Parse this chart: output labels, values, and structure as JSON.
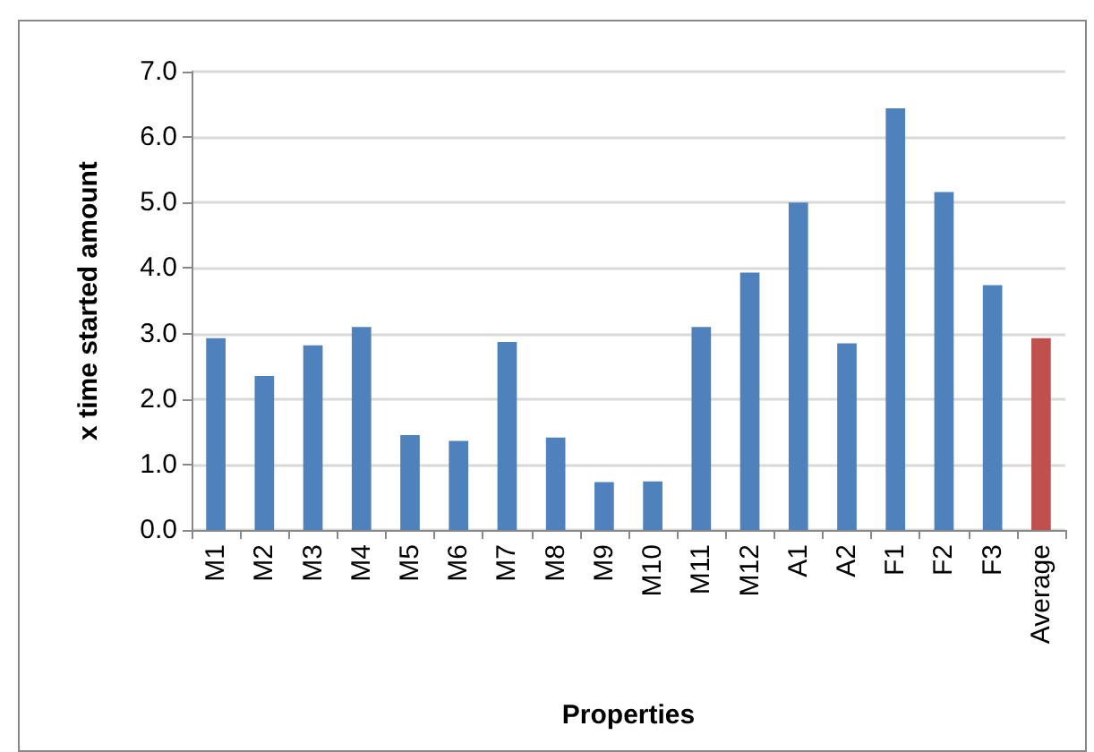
{
  "chart_data": {
    "type": "bar",
    "xlabel": "Properties",
    "ylabel": "x time started amount",
    "categories": [
      "M1",
      "M2",
      "M3",
      "M4",
      "M5",
      "M6",
      "M7",
      "M8",
      "M9",
      "M10",
      "M11",
      "M12",
      "A1",
      "A2",
      "F1",
      "F2",
      "F3",
      "Average"
    ],
    "values": [
      2.93,
      2.35,
      2.82,
      3.1,
      1.45,
      1.36,
      2.87,
      1.41,
      0.73,
      0.74,
      3.1,
      3.93,
      5.0,
      2.85,
      6.44,
      5.16,
      3.74,
      2.93
    ],
    "colors": [
      "#4f81bd",
      "#4f81bd",
      "#4f81bd",
      "#4f81bd",
      "#4f81bd",
      "#4f81bd",
      "#4f81bd",
      "#4f81bd",
      "#4f81bd",
      "#4f81bd",
      "#4f81bd",
      "#4f81bd",
      "#4f81bd",
      "#4f81bd",
      "#4f81bd",
      "#4f81bd",
      "#4f81bd",
      "#c0504d"
    ],
    "ylim": [
      0,
      7
    ],
    "yticks": [
      {
        "value": 0,
        "label": "0.0"
      },
      {
        "value": 1,
        "label": "1.0"
      },
      {
        "value": 2,
        "label": "2.0"
      },
      {
        "value": 3,
        "label": "3.0"
      },
      {
        "value": 4,
        "label": "4.0"
      },
      {
        "value": 5,
        "label": "5.0"
      },
      {
        "value": 6,
        "label": "6.0"
      },
      {
        "value": 7,
        "label": "7.0"
      }
    ],
    "grid": "y"
  }
}
